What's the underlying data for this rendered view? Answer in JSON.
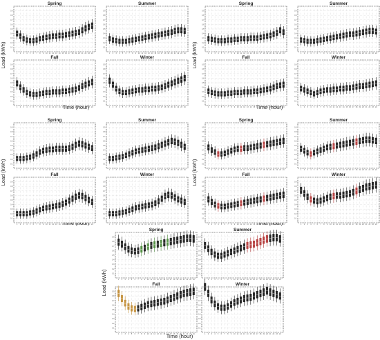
{
  "figure": {
    "ylabel": "Load (kWh)",
    "xlabel": "Time (hour)"
  },
  "colors": {
    "box_dark": "#111111",
    "box_red": "#b03030",
    "box_green": "#4a8a3a",
    "box_orange": "#c08a30",
    "grid": "#cfcfcf",
    "frame": "#222222"
  },
  "chart_data": [
    {
      "type": "boxplot",
      "group": 1,
      "xlabel": "Time (hour)",
      "ylabel": "Load (kWh)",
      "x": [
        1,
        2,
        3,
        4,
        5,
        6,
        7,
        8,
        9,
        10,
        11,
        12,
        13,
        14,
        15,
        16,
        17,
        18,
        19,
        20,
        21,
        22,
        23,
        24
      ],
      "grid": true,
      "panels": [
        {
          "title": "Spring",
          "values": [
            0.28,
            0.24,
            0.2,
            0.18,
            0.17,
            0.17,
            0.18,
            0.2,
            0.21,
            0.22,
            0.23,
            0.24,
            0.24,
            0.25,
            0.25,
            0.26,
            0.27,
            0.28,
            0.29,
            0.3,
            0.33,
            0.36,
            0.38,
            0.4
          ]
        },
        {
          "title": "Summer",
          "values": [
            0.2,
            0.18,
            0.17,
            0.16,
            0.16,
            0.16,
            0.17,
            0.18,
            0.19,
            0.2,
            0.21,
            0.22,
            0.23,
            0.24,
            0.25,
            0.26,
            0.27,
            0.28,
            0.29,
            0.3,
            0.32,
            0.33,
            0.33,
            0.32
          ]
        },
        {
          "title": "Fall",
          "values": [
            0.34,
            0.28,
            0.24,
            0.2,
            0.18,
            0.17,
            0.17,
            0.18,
            0.19,
            0.2,
            0.2,
            0.21,
            0.21,
            0.21,
            0.22,
            0.22,
            0.23,
            0.24,
            0.25,
            0.27,
            0.3,
            0.32,
            0.34,
            0.36
          ]
        },
        {
          "title": "Winter",
          "values": [
            0.38,
            0.32,
            0.26,
            0.22,
            0.2,
            0.2,
            0.21,
            0.22,
            0.23,
            0.24,
            0.24,
            0.25,
            0.25,
            0.26,
            0.26,
            0.27,
            0.28,
            0.3,
            0.32,
            0.34,
            0.36,
            0.38,
            0.4,
            0.42
          ]
        }
      ]
    },
    {
      "type": "boxplot",
      "group": 2,
      "xlabel": "Time (hour)",
      "ylabel": "Load (kWh)",
      "x": [
        1,
        2,
        3,
        4,
        5,
        6,
        7,
        8,
        9,
        10,
        11,
        12,
        13,
        14,
        15,
        16,
        17,
        18,
        19,
        20,
        21,
        22,
        23,
        24
      ],
      "grid": true,
      "panels": [
        {
          "title": "Spring",
          "values": [
            0.2,
            0.19,
            0.18,
            0.17,
            0.17,
            0.17,
            0.18,
            0.18,
            0.19,
            0.19,
            0.2,
            0.2,
            0.2,
            0.21,
            0.21,
            0.21,
            0.22,
            0.23,
            0.24,
            0.25,
            0.27,
            0.29,
            0.33,
            0.3
          ]
        },
        {
          "title": "Summer",
          "values": [
            0.18,
            0.17,
            0.16,
            0.16,
            0.16,
            0.17,
            0.18,
            0.19,
            0.2,
            0.21,
            0.22,
            0.23,
            0.24,
            0.25,
            0.26,
            0.27,
            0.27,
            0.28,
            0.29,
            0.3,
            0.31,
            0.32,
            0.32,
            0.31
          ]
        },
        {
          "title": "Fall",
          "values": [
            0.22,
            0.2,
            0.19,
            0.18,
            0.18,
            0.18,
            0.19,
            0.19,
            0.2,
            0.2,
            0.2,
            0.21,
            0.21,
            0.21,
            0.22,
            0.22,
            0.23,
            0.24,
            0.25,
            0.26,
            0.28,
            0.3,
            0.31,
            0.32
          ]
        },
        {
          "title": "Winter",
          "values": [
            0.26,
            0.24,
            0.22,
            0.2,
            0.18,
            0.2,
            0.22,
            0.23,
            0.24,
            0.24,
            0.25,
            0.25,
            0.26,
            0.26,
            0.27,
            0.27,
            0.28,
            0.29,
            0.3,
            0.3,
            0.31,
            0.32,
            0.33,
            0.34
          ]
        }
      ]
    },
    {
      "type": "boxplot",
      "group": 3,
      "xlabel": "Time (hour)",
      "ylabel": "Load (kWh)",
      "x": [
        1,
        2,
        3,
        4,
        5,
        6,
        7,
        8,
        9,
        10,
        11,
        12,
        13,
        14,
        15,
        16,
        17,
        18,
        19,
        20,
        21,
        22,
        23,
        24
      ],
      "grid": true,
      "panels": [
        {
          "title": "Spring",
          "values": [
            0.15,
            0.15,
            0.15,
            0.16,
            0.17,
            0.19,
            0.22,
            0.25,
            0.27,
            0.28,
            0.29,
            0.29,
            0.3,
            0.3,
            0.3,
            0.3,
            0.31,
            0.33,
            0.36,
            0.38,
            0.37,
            0.35,
            0.33,
            0.31
          ]
        },
        {
          "title": "Summer",
          "values": [
            0.15,
            0.15,
            0.16,
            0.17,
            0.18,
            0.2,
            0.22,
            0.24,
            0.26,
            0.27,
            0.28,
            0.29,
            0.3,
            0.31,
            0.32,
            0.34,
            0.36,
            0.38,
            0.4,
            0.42,
            0.41,
            0.39,
            0.36,
            0.33
          ]
        },
        {
          "title": "Fall",
          "values": [
            0.14,
            0.14,
            0.14,
            0.14,
            0.15,
            0.16,
            0.18,
            0.2,
            0.22,
            0.23,
            0.24,
            0.25,
            0.26,
            0.27,
            0.29,
            0.31,
            0.34,
            0.37,
            0.4,
            0.42,
            0.41,
            0.38,
            0.35,
            0.32
          ]
        },
        {
          "title": "Winter",
          "values": [
            0.14,
            0.14,
            0.14,
            0.15,
            0.16,
            0.17,
            0.19,
            0.21,
            0.23,
            0.24,
            0.25,
            0.26,
            0.27,
            0.28,
            0.3,
            0.33,
            0.37,
            0.41,
            0.43,
            0.42,
            0.39,
            0.36,
            0.34,
            0.32
          ]
        }
      ]
    },
    {
      "type": "boxplot",
      "group": 4,
      "xlabel": "Time (hour)",
      "ylabel": "Load (kWh)",
      "x": [
        1,
        2,
        3,
        4,
        5,
        6,
        7,
        8,
        9,
        10,
        11,
        12,
        13,
        14,
        15,
        16,
        17,
        18,
        19,
        20,
        21,
        22,
        23,
        24
      ],
      "grid": true,
      "panels": [
        {
          "title": "Spring",
          "values": [
            0.32,
            0.28,
            0.25,
            0.22,
            0.22,
            0.23,
            0.25,
            0.27,
            0.29,
            0.3,
            0.3,
            0.31,
            0.31,
            0.32,
            0.33,
            0.34,
            0.35,
            0.36,
            0.37,
            0.38,
            0.39,
            0.4,
            0.41,
            0.42
          ]
        },
        {
          "title": "Summer",
          "values": [
            0.3,
            0.27,
            0.24,
            0.22,
            0.24,
            0.26,
            0.28,
            0.3,
            0.32,
            0.33,
            0.34,
            0.35,
            0.36,
            0.37,
            0.38,
            0.39,
            0.4,
            0.41,
            0.42,
            0.43,
            0.44,
            0.44,
            0.43,
            0.42
          ]
        },
        {
          "title": "Fall",
          "values": [
            0.36,
            0.32,
            0.28,
            0.26,
            0.25,
            0.25,
            0.26,
            0.27,
            0.28,
            0.29,
            0.3,
            0.31,
            0.32,
            0.33,
            0.34,
            0.35,
            0.36,
            0.37,
            0.38,
            0.39,
            0.4,
            0.41,
            0.42,
            0.43
          ]
        },
        {
          "title": "Winter",
          "values": [
            0.5,
            0.45,
            0.4,
            0.36,
            0.34,
            0.33,
            0.34,
            0.36,
            0.38,
            0.4,
            0.41,
            0.42,
            0.42,
            0.43,
            0.44,
            0.45,
            0.47,
            0.49,
            0.51,
            0.53,
            0.55,
            0.56,
            0.57,
            0.58
          ]
        }
      ]
    },
    {
      "type": "boxplot",
      "group": 5,
      "xlabel": "Time (hour)",
      "ylabel": "Load (kWh)",
      "x": [
        1,
        2,
        3,
        4,
        5,
        6,
        7,
        8,
        9,
        10,
        11,
        12,
        13,
        14,
        15,
        16,
        17,
        18,
        19,
        20,
        21,
        22,
        23,
        24
      ],
      "grid": true,
      "panels": [
        {
          "title": "Spring",
          "values": [
            0.55,
            0.52,
            0.48,
            0.44,
            0.42,
            0.41,
            0.42,
            0.44,
            0.46,
            0.48,
            0.5,
            0.51,
            0.52,
            0.53,
            0.54,
            0.55,
            0.56,
            0.57,
            0.58,
            0.59,
            0.6,
            0.61,
            0.61,
            0.6
          ]
        },
        {
          "title": "Summer",
          "values": [
            0.5,
            0.45,
            0.4,
            0.36,
            0.34,
            0.34,
            0.36,
            0.38,
            0.4,
            0.42,
            0.44,
            0.46,
            0.48,
            0.5,
            0.51,
            0.52,
            0.54,
            0.56,
            0.58,
            0.6,
            0.61,
            0.62,
            0.62,
            0.6
          ]
        },
        {
          "title": "Fall",
          "values": [
            0.6,
            0.52,
            0.45,
            0.4,
            0.37,
            0.36,
            0.37,
            0.39,
            0.41,
            0.43,
            0.44,
            0.45,
            0.46,
            0.47,
            0.48,
            0.5,
            0.52,
            0.54,
            0.56,
            0.58,
            0.6,
            0.61,
            0.62,
            0.63
          ]
        },
        {
          "title": "Winter",
          "values": [
            0.7,
            0.6,
            0.5,
            0.44,
            0.4,
            0.38,
            0.38,
            0.4,
            0.43,
            0.46,
            0.48,
            0.5,
            0.52,
            0.53,
            0.54,
            0.56,
            0.58,
            0.6,
            0.62,
            0.64,
            0.62,
            0.6,
            0.58,
            0.56
          ]
        }
      ]
    }
  ]
}
